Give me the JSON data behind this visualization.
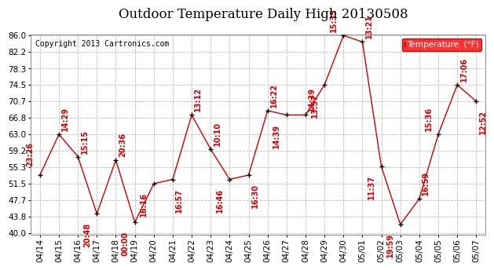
{
  "dates": [
    "04/14",
    "04/15",
    "04/16",
    "04/17",
    "04/18",
    "04/19",
    "04/20",
    "04/21",
    "04/22",
    "04/23",
    "04/24",
    "04/25",
    "04/26",
    "04/27",
    "04/28",
    "04/29",
    "04/30",
    "05/01",
    "05/02",
    "05/03",
    "05/04",
    "05/05",
    "05/06",
    "05/07"
  ],
  "temps": [
    53.5,
    63.0,
    57.8,
    44.5,
    57.0,
    42.5,
    51.5,
    52.5,
    67.5,
    59.5,
    52.5,
    53.5,
    68.5,
    67.5,
    67.5,
    74.5,
    86.0,
    84.5,
    55.5,
    42.0,
    48.0,
    63.0,
    74.5,
    70.7
  ],
  "time_labels": [
    "23:26",
    "14:29",
    "15:15",
    "20:48",
    "20:36",
    "00:00",
    "16:16",
    "16:57",
    "13:12",
    "10:10",
    "16:46",
    "16:30",
    "16:22",
    "14:39",
    "14:39",
    "13:57",
    "15:35",
    "13:21",
    "11:37",
    "19:59",
    "16:59",
    "15:36",
    "17:06",
    "12:52"
  ],
  "title": "Outdoor Temperature Daily High 20130508",
  "legend_label": "Temperature  (°F)",
  "copyright": "Copyright 2013 Cartronics.com",
  "yticks": [
    40.0,
    43.8,
    47.7,
    51.5,
    55.3,
    59.2,
    63.0,
    66.8,
    70.7,
    74.5,
    78.3,
    82.2,
    86.0
  ],
  "ymin": 40.0,
  "ymax": 86.0,
  "line_color": "#cc0000",
  "marker_color": "#000000",
  "bg_color": "#ffffff",
  "grid_color": "#bbbbbb",
  "title_fontsize": 12,
  "tick_fontsize": 7.5,
  "annot_fontsize": 7,
  "copyright_fontsize": 7
}
